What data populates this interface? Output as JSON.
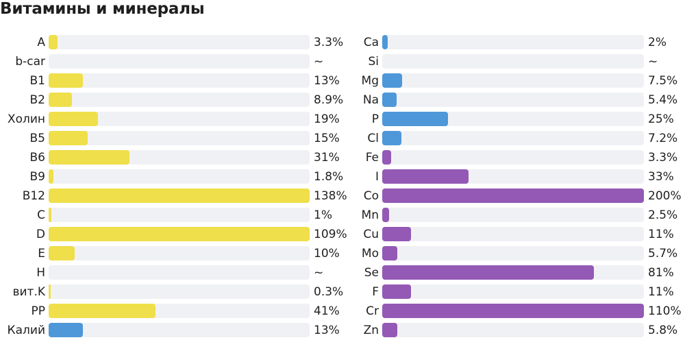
{
  "title": "Витамины и минералы",
  "colors": {
    "yellow": "#efdf4a",
    "blue": "#4e97d8",
    "purple": "#9359b5",
    "track": "#f0f1f4"
  },
  "chart_data": [
    {
      "type": "bar",
      "orientation": "horizontal",
      "axis_max_percent": 100,
      "categories": [
        "A",
        "b-car",
        "B1",
        "B2",
        "Холин",
        "B5",
        "B6",
        "B9",
        "B12",
        "C",
        "D",
        "E",
        "H",
        "вит.K",
        "PP",
        "Калий"
      ],
      "value_labels": [
        "3.3%",
        "~",
        "13%",
        "8.9%",
        "19%",
        "15%",
        "31%",
        "1.8%",
        "138%",
        "1%",
        "109%",
        "10%",
        "~",
        "0.3%",
        "41%",
        "13%"
      ],
      "values": [
        3.3,
        null,
        13,
        8.9,
        19,
        15,
        31,
        1.8,
        138,
        1,
        109,
        10,
        null,
        0.3,
        41,
        13
      ],
      "bar_colors": [
        "yellow",
        "yellow",
        "yellow",
        "yellow",
        "yellow",
        "yellow",
        "yellow",
        "yellow",
        "yellow",
        "yellow",
        "yellow",
        "yellow",
        "yellow",
        "yellow",
        "yellow",
        "blue"
      ]
    },
    {
      "type": "bar",
      "orientation": "horizontal",
      "axis_max_percent": 100,
      "categories": [
        "Ca",
        "Si",
        "Mg",
        "Na",
        "P",
        "Cl",
        "Fe",
        "I",
        "Co",
        "Mn",
        "Cu",
        "Mo",
        "Se",
        "F",
        "Cr",
        "Zn"
      ],
      "value_labels": [
        "2%",
        "~",
        "7.5%",
        "5.4%",
        "25%",
        "7.2%",
        "3.3%",
        "33%",
        "200%",
        "2.5%",
        "11%",
        "5.7%",
        "81%",
        "11%",
        "110%",
        "5.8%"
      ],
      "values": [
        2,
        null,
        7.5,
        5.4,
        25,
        7.2,
        3.3,
        33,
        200,
        2.5,
        11,
        5.7,
        81,
        11,
        110,
        5.8
      ],
      "bar_colors": [
        "blue",
        "blue",
        "blue",
        "blue",
        "blue",
        "blue",
        "purple",
        "purple",
        "purple",
        "purple",
        "purple",
        "purple",
        "purple",
        "purple",
        "purple",
        "purple"
      ]
    }
  ]
}
